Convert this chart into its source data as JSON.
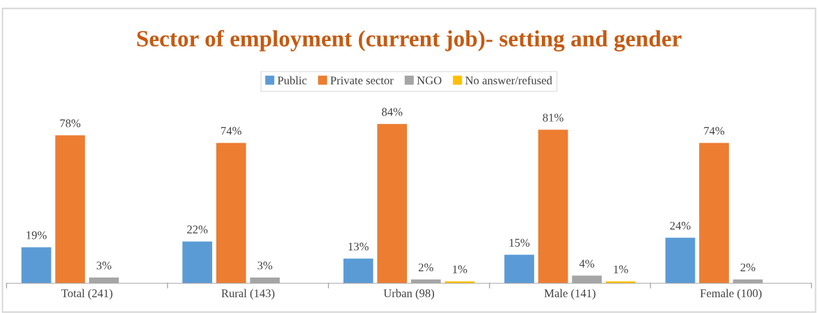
{
  "chart_data": {
    "type": "bar",
    "title": "Sector of employment (current job)- setting and gender",
    "categories": [
      "Total (241)",
      "Rural (143)",
      "Urban (98)",
      "Male (141)",
      "Female (100)"
    ],
    "series": [
      {
        "name": "Public",
        "color": "#5b9bd5",
        "values": [
          19,
          22,
          13,
          15,
          24
        ],
        "value_labels": [
          "19%",
          "22%",
          "13%",
          "15%",
          "24%"
        ]
      },
      {
        "name": "Private sector",
        "color": "#ed7d31",
        "values": [
          78,
          74,
          84,
          81,
          74
        ],
        "value_labels": [
          "78%",
          "74%",
          "84%",
          "81%",
          "74%"
        ]
      },
      {
        "name": "NGO",
        "color": "#a5a5a5",
        "values": [
          3,
          3,
          2,
          4,
          2
        ],
        "value_labels": [
          "3%",
          "3%",
          "2%",
          "4%",
          "2%"
        ]
      },
      {
        "name": "No answer/refused",
        "color": "#ffc000",
        "values": [
          null,
          null,
          1,
          1,
          null
        ],
        "value_labels": [
          null,
          null,
          "1%",
          "1%",
          null
        ]
      }
    ],
    "legend": "top",
    "grid": false
  }
}
